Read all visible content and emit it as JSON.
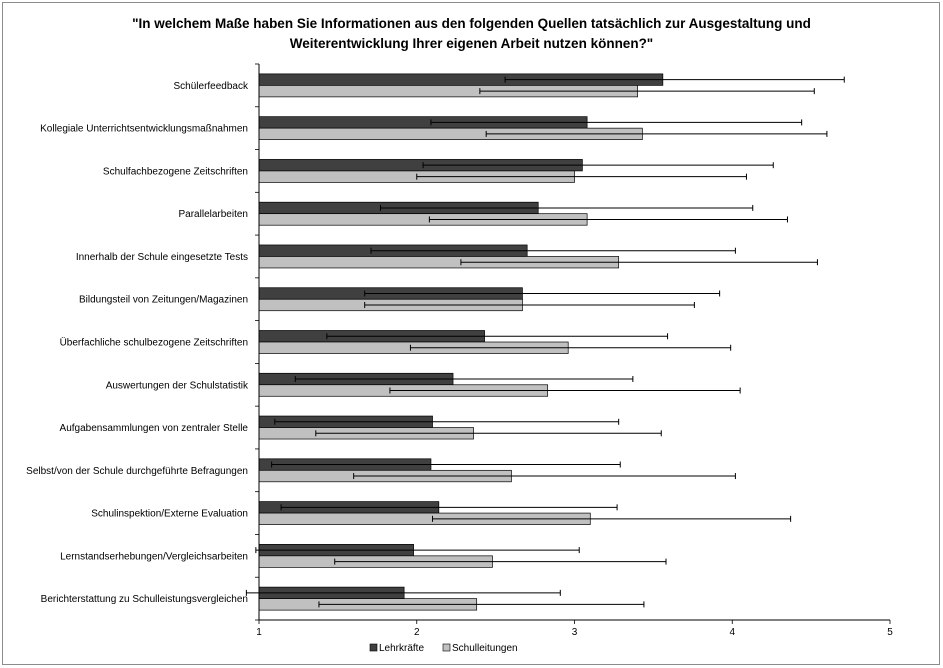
{
  "chart_data": {
    "type": "bar",
    "orientation": "horizontal",
    "title": "\"In welchem Maße haben Sie Informationen aus den folgenden Quellen tatsächlich zur Ausgestaltung und Weiterentwicklung Ihrer eigenen Arbeit nutzen können?\"",
    "title_lines": [
      "\"In welchem Maße haben Sie Informationen aus den folgenden Quellen tatsächlich zur Ausgestaltung und",
      "Weiterentwicklung Ihrer eigenen Arbeit nutzen können?\""
    ],
    "xlim": [
      1,
      5
    ],
    "xticks": [
      "1",
      "2",
      "3",
      "4",
      "5"
    ],
    "grid": false,
    "legend_position": "bottom",
    "categories": [
      "Schülerfeedback",
      "Kollegiale Unterrichtsentwicklungsmaßnahmen",
      "Schulfachbezogene Zeitschriften",
      "Parallelarbeiten",
      "Innerhalb der Schule eingesetzte Tests",
      "Bildungsteil von Zeitungen/Magazinen",
      "Überfachliche schulbezogene Zeitschriften",
      "Auswertungen der Schulstatistik",
      "Aufgabensammlungen von zentraler Stelle",
      "Selbst/von der Schule durchgeführte Befragungen",
      "Schulinspektion/Externe Evaluation",
      "Lernstandserhebungen/Vergleichsarbeiten",
      "Berichterstattung zu Schulleistungsvergleichen"
    ],
    "series": [
      {
        "name": "Lehrkräfte",
        "color": "#404040",
        "values": [
          3.56,
          3.08,
          3.05,
          2.77,
          2.7,
          2.67,
          2.43,
          2.23,
          2.1,
          2.09,
          2.14,
          1.98,
          1.92
        ],
        "err_low": [
          2.56,
          2.09,
          2.04,
          1.77,
          1.71,
          1.67,
          1.43,
          1.23,
          1.1,
          1.08,
          1.14,
          0.98,
          0.92
        ],
        "err_high": [
          4.71,
          4.44,
          4.26,
          4.13,
          4.02,
          3.92,
          3.59,
          3.37,
          3.28,
          3.29,
          3.27,
          3.03,
          2.91
        ]
      },
      {
        "name": "Schulleitungen",
        "color": "#c0c0c0",
        "values": [
          3.4,
          3.43,
          3.0,
          3.08,
          3.28,
          2.67,
          2.96,
          2.83,
          2.36,
          2.6,
          3.1,
          2.48,
          2.38
        ],
        "err_low": [
          2.4,
          2.44,
          2.0,
          2.08,
          2.28,
          1.67,
          1.96,
          1.83,
          1.36,
          1.6,
          2.1,
          1.48,
          1.38
        ],
        "err_high": [
          4.52,
          4.6,
          4.09,
          4.35,
          4.54,
          3.76,
          3.99,
          4.05,
          3.55,
          4.02,
          4.37,
          3.58,
          3.44
        ]
      }
    ]
  }
}
